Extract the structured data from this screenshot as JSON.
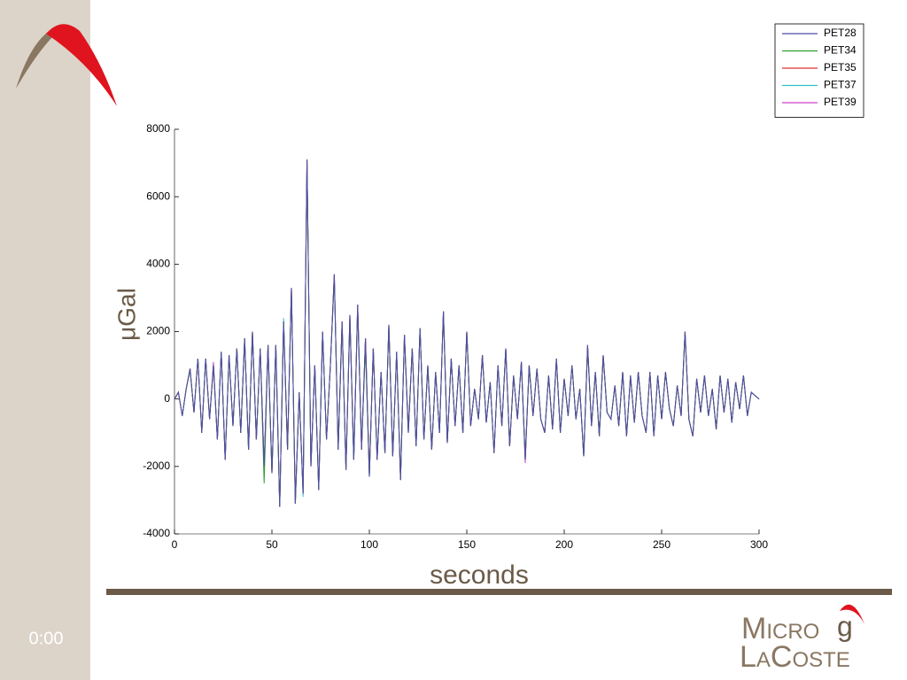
{
  "slide_timer": "0:00",
  "logo": {
    "line1": "Micro",
    "mark": "g",
    "line2": "LaCoste"
  },
  "chart_data": {
    "type": "line",
    "ylabel": "μGal",
    "xlabel": "seconds",
    "legend": "upper right",
    "xlim": [
      0,
      300
    ],
    "xticks": [
      0,
      50,
      100,
      150,
      200,
      250,
      300
    ],
    "ylim": [
      -4000,
      8000
    ],
    "yticks": [
      -4000,
      -2000,
      0,
      2000,
      4000,
      6000,
      8000
    ],
    "x": [
      0,
      2,
      4,
      6,
      8,
      10,
      12,
      14,
      16,
      18,
      20,
      22,
      24,
      26,
      28,
      30,
      32,
      34,
      36,
      38,
      40,
      42,
      44,
      46,
      48,
      50,
      52,
      54,
      56,
      58,
      60,
      62,
      64,
      66,
      68,
      70,
      72,
      74,
      76,
      78,
      80,
      82,
      84,
      86,
      88,
      90,
      92,
      94,
      96,
      98,
      100,
      102,
      104,
      106,
      108,
      110,
      112,
      114,
      116,
      118,
      120,
      122,
      124,
      126,
      128,
      130,
      132,
      134,
      136,
      138,
      140,
      142,
      144,
      146,
      148,
      150,
      152,
      154,
      156,
      158,
      160,
      162,
      164,
      166,
      168,
      170,
      172,
      174,
      176,
      178,
      180,
      182,
      184,
      186,
      188,
      190,
      192,
      194,
      196,
      198,
      200,
      202,
      204,
      206,
      208,
      210,
      212,
      214,
      216,
      218,
      220,
      222,
      224,
      226,
      228,
      230,
      232,
      234,
      236,
      238,
      240,
      242,
      244,
      246,
      248,
      250,
      252,
      254,
      256,
      258,
      260,
      262,
      264,
      266,
      268,
      270,
      272,
      274,
      276,
      278,
      280,
      282,
      284,
      286,
      288,
      290,
      292,
      294,
      296,
      298,
      300
    ],
    "series": [
      {
        "name": "PET28",
        "color": "#4f4aa8",
        "values": [
          0,
          200,
          -500,
          300,
          900,
          -400,
          1200,
          -1000,
          1200,
          -600,
          1000,
          -1200,
          1400,
          -1800,
          1300,
          -800,
          1500,
          -1000,
          1800,
          -1500,
          2000,
          -1200,
          1500,
          -2000,
          1600,
          -2200,
          1600,
          -3200,
          2300,
          -1500,
          3300,
          -3100,
          200,
          -2800,
          7100,
          -2000,
          1000,
          -2700,
          2000,
          -1200,
          1000,
          3700,
          -1500,
          2300,
          -2100,
          2500,
          -1800,
          2800,
          -1500,
          1800,
          -2300,
          1500,
          -1800,
          800,
          -1600,
          2200,
          -1700,
          1400,
          -2400,
          1900,
          -1000,
          1500,
          -1400,
          2100,
          -1200,
          1000,
          -1500,
          800,
          -1000,
          2600,
          -1300,
          1200,
          -800,
          1000,
          -1000,
          2000,
          -800,
          300,
          -600,
          1300,
          -700,
          500,
          -1600,
          1000,
          -800,
          1500,
          -1400,
          700,
          -600,
          1100,
          -1800,
          1000,
          -500,
          900,
          -600,
          -1000,
          700,
          -900,
          1200,
          -1000,
          600,
          -500,
          1000,
          -600,
          300,
          -1700,
          1600,
          -800,
          800,
          -1100,
          1300,
          -400,
          -600,
          400,
          -800,
          800,
          -1100,
          700,
          -700,
          800,
          -500,
          -1000,
          800,
          -1100,
          700,
          -600,
          800,
          -300,
          -800,
          400,
          -500,
          2000,
          -600,
          -1100,
          600,
          -400,
          700,
          -500,
          300,
          -900,
          700,
          -400,
          600,
          -700,
          500,
          -300,
          700,
          -500,
          200,
          100,
          0
        ]
      },
      {
        "name": "PET34",
        "color": "#2ca02c",
        "values": [
          0,
          200,
          -500,
          300,
          850,
          -400,
          1200,
          -1000,
          1200,
          -600,
          1000,
          -1200,
          1400,
          -1800,
          1300,
          -800,
          1500,
          -1000,
          1800,
          -1500,
          2000,
          -1200,
          1500,
          -2500,
          1600,
          -2200,
          1600,
          -3200,
          2300,
          -1500,
          3300,
          -3100,
          200,
          -2800,
          7000,
          -2000,
          1000,
          -2700,
          2000,
          -1200,
          1000,
          3600,
          -1500,
          2200,
          -2100,
          2400,
          -1800,
          2700,
          -1400,
          1500,
          -2300,
          1500,
          -1800,
          800,
          -1600,
          2200,
          -1700,
          1400,
          -2400,
          1900,
          -1000,
          1500,
          -1400,
          2100,
          -1200,
          1000,
          -1500,
          800,
          -1000,
          2600,
          -1300,
          1200,
          -800,
          1000,
          -1000,
          2000,
          -800,
          300,
          -600,
          1300,
          -700,
          500,
          -1600,
          1000,
          -800,
          1500,
          -1400,
          700,
          -600,
          1100,
          -1800,
          1000,
          -500,
          900,
          -600,
          -1000,
          700,
          -900,
          1200,
          -1000,
          600,
          -500,
          1000,
          -600,
          300,
          -1700,
          1500,
          -800,
          800,
          -1100,
          1300,
          -400,
          -600,
          400,
          -800,
          800,
          -1100,
          700,
          -700,
          800,
          -500,
          -1000,
          800,
          -1100,
          700,
          -600,
          800,
          -300,
          -800,
          400,
          -500,
          2000,
          -600,
          -1100,
          600,
          -400,
          700,
          -500,
          300,
          -900,
          700,
          -400,
          600,
          -700,
          500,
          -300,
          700,
          -500,
          200,
          100,
          0
        ]
      },
      {
        "name": "PET35",
        "color": "#e03030",
        "values": [
          0,
          200,
          -500,
          300,
          900,
          -400,
          1200,
          -1000,
          1200,
          -600,
          1000,
          -1200,
          1400,
          -1800,
          1300,
          -800,
          1500,
          -1000,
          1800,
          -1500,
          2000,
          -1200,
          1500,
          -2000,
          1600,
          -2200,
          1600,
          -3200,
          2250,
          -1500,
          3300,
          -3100,
          200,
          -2800,
          7100,
          -2000,
          1000,
          -2700,
          2000,
          -1200,
          1000,
          3700,
          -1500,
          2300,
          -2100,
          2500,
          -1800,
          2800,
          -1500,
          1800,
          -2200,
          1500,
          -1800,
          800,
          -1600,
          2200,
          -1700,
          1400,
          -2400,
          1900,
          -900,
          1500,
          -1400,
          2100,
          -1200,
          1000,
          -1500,
          800,
          -1000,
          2600,
          -1300,
          1200,
          -800,
          1000,
          -1000,
          2000,
          -800,
          300,
          -600,
          1300,
          -700,
          500,
          -1600,
          1000,
          -800,
          1500,
          -1400,
          700,
          -600,
          1100,
          -1800,
          1000,
          -500,
          900,
          -600,
          -1000,
          700,
          -900,
          1200,
          -1000,
          600,
          -500,
          1000,
          -600,
          300,
          -1700,
          1600,
          -800,
          800,
          -1100,
          1300,
          -400,
          -600,
          400,
          -800,
          800,
          -1100,
          700,
          -700,
          800,
          -500,
          -1000,
          800,
          -1100,
          700,
          -600,
          800,
          -300,
          -800,
          400,
          -500,
          2000,
          -600,
          -1100,
          600,
          -400,
          700,
          -500,
          300,
          -900,
          700,
          -400,
          600,
          -700,
          500,
          -300,
          700,
          -500,
          200,
          100,
          0
        ]
      },
      {
        "name": "PET37",
        "color": "#30c0c8",
        "values": [
          0,
          200,
          -500,
          300,
          900,
          -400,
          1200,
          -1000,
          1200,
          -600,
          1000,
          -1200,
          1400,
          -1800,
          1300,
          -800,
          1500,
          -1000,
          1800,
          -1500,
          2000,
          -1200,
          1500,
          -2000,
          1600,
          -2200,
          1600,
          -3200,
          2400,
          -1500,
          3300,
          -3100,
          200,
          -2900,
          7100,
          -2000,
          1000,
          -2700,
          2000,
          -1200,
          1000,
          3700,
          -1500,
          2300,
          -2100,
          2500,
          -1800,
          2800,
          -1500,
          1800,
          -2300,
          1500,
          -1800,
          800,
          -1600,
          2200,
          -1700,
          1400,
          -2400,
          1900,
          -1000,
          1500,
          -1400,
          2100,
          -1200,
          1000,
          -1500,
          800,
          -1000,
          2600,
          -1300,
          1200,
          -800,
          1000,
          -1000,
          2000,
          -800,
          300,
          -600,
          1300,
          -700,
          500,
          -1600,
          1000,
          -800,
          1500,
          -1400,
          700,
          -600,
          1100,
          -1700,
          1000,
          -500,
          900,
          -600,
          -1000,
          700,
          -900,
          1200,
          -1000,
          600,
          -500,
          1000,
          -600,
          300,
          -1700,
          1600,
          -800,
          800,
          -1100,
          1300,
          -400,
          -600,
          400,
          -800,
          800,
          -1100,
          700,
          -700,
          800,
          -500,
          -1000,
          800,
          -1100,
          700,
          -600,
          800,
          -300,
          -800,
          400,
          -500,
          2000,
          -600,
          -1100,
          600,
          -400,
          700,
          -500,
          300,
          -900,
          700,
          -400,
          600,
          -700,
          500,
          -300,
          700,
          -500,
          200,
          100,
          0
        ]
      },
      {
        "name": "PET39",
        "color": "#d040d0",
        "values": [
          0,
          200,
          -500,
          300,
          900,
          -400,
          1200,
          -1000,
          1200,
          -600,
          1100,
          -1200,
          1400,
          -1800,
          1300,
          -800,
          1500,
          -1000,
          1800,
          -1500,
          2000,
          -1200,
          1500,
          -2000,
          1600,
          -2200,
          1600,
          -3200,
          2300,
          -1500,
          3300,
          -3000,
          200,
          -2800,
          7100,
          -2000,
          1000,
          -2700,
          2000,
          -1200,
          1000,
          3700,
          -1500,
          2300,
          -2100,
          2500,
          -1800,
          2800,
          -1500,
          1800,
          -2300,
          1500,
          -1800,
          800,
          -1600,
          2200,
          -1700,
          1400,
          -2400,
          1900,
          -1000,
          1500,
          -1400,
          2100,
          -1200,
          1000,
          -1500,
          800,
          -1000,
          2600,
          -1300,
          1200,
          -800,
          1000,
          -1000,
          2000,
          -800,
          300,
          -600,
          1300,
          -700,
          500,
          -1600,
          1000,
          -800,
          1500,
          -1400,
          700,
          -600,
          1100,
          -1900,
          1000,
          -500,
          900,
          -600,
          -1000,
          700,
          -900,
          1200,
          -1000,
          600,
          -500,
          1000,
          -600,
          300,
          -1700,
          1600,
          -800,
          800,
          -1100,
          1300,
          -400,
          -600,
          400,
          -800,
          800,
          -1100,
          700,
          -700,
          800,
          -500,
          -1000,
          800,
          -1100,
          700,
          -600,
          800,
          -300,
          -800,
          400,
          -500,
          2000,
          -600,
          -1100,
          600,
          -400,
          700,
          -500,
          300,
          -900,
          700,
          -400,
          600,
          -700,
          500,
          -300,
          700,
          -500,
          200,
          100,
          0
        ]
      }
    ]
  }
}
